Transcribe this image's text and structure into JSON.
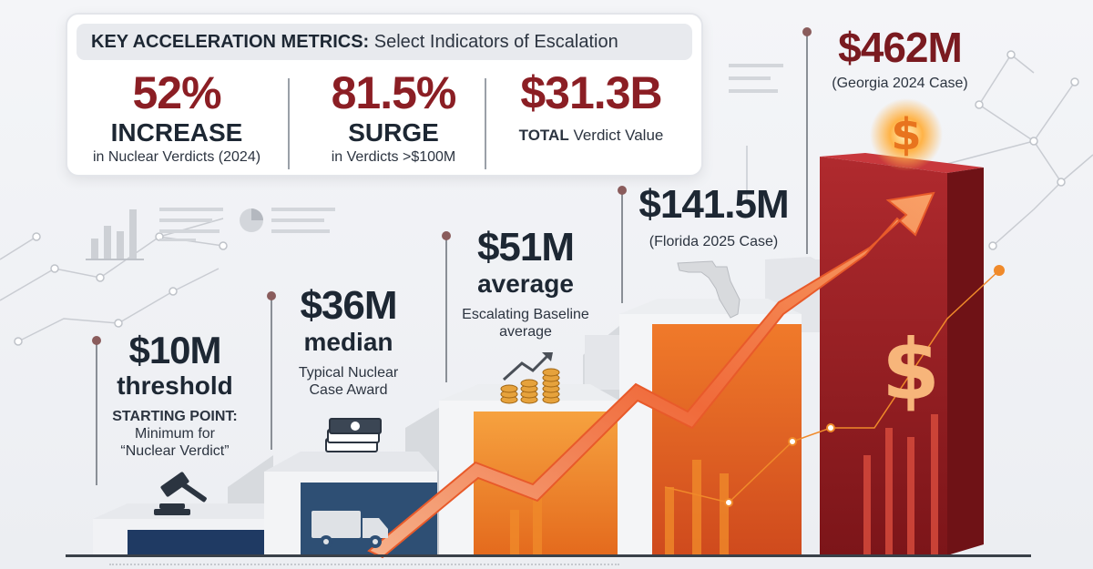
{
  "header": {
    "title_bold": "KEY ACCELERATION METRICS:",
    "title_rest": "Select Indicators of Escalation"
  },
  "metrics": [
    {
      "value": "52%",
      "word": "INCREASE",
      "sub": "in Nuclear Verdicts (2024)"
    },
    {
      "value": "81.5%",
      "word": "SURGE",
      "sub": "in Verdicts >$100M"
    },
    {
      "value": "$31.3B",
      "word": "TOTAL",
      "sub": "Verdict Value"
    }
  ],
  "steps": [
    {
      "value": "$10M",
      "unit": "threshold",
      "desc_bold": "STARTING POINT:",
      "desc": "Minimum for",
      "desc2": "“Nuclear Verdict”",
      "icon": "gavel-icon"
    },
    {
      "value": "$36M",
      "unit": "median",
      "desc": "Typical Nuclear",
      "desc2": "Case Award",
      "icon": "cash-stack-icon"
    },
    {
      "value": "$51M",
      "unit": "average",
      "desc": "Escalating Baseline",
      "desc2": "average",
      "icon": "coins-growth-icon"
    },
    {
      "value": "$141.5M",
      "desc": "(Florida 2025 Case)",
      "icon": "florida-map-icon"
    },
    {
      "value": "$462M",
      "desc": "(Georgia 2024 Case)",
      "icon": "dollar-sign-icon"
    }
  ],
  "icons": {
    "truck": "truck-icon",
    "dollar_glow": "dollar-sign-icon",
    "trend_arrow": "trend-arrow-icon"
  },
  "colors": {
    "accent_red": "#8b1e24",
    "navy": "#1d2733",
    "orange": "#f08a2a",
    "crimson": "#a4222a"
  }
}
